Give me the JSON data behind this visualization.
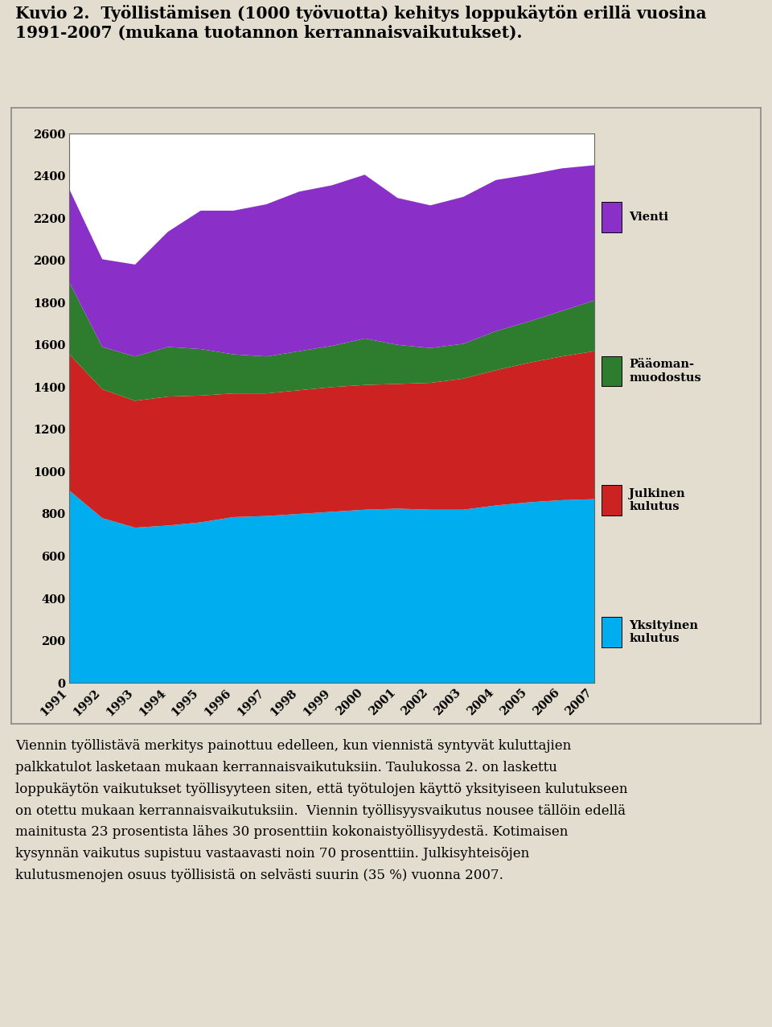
{
  "title_line1": "Kuvio 2.  Työllistämisen (1000 työvuotta) kehitys loppukäytön erillä vuosina",
  "title_line2": "1991-2007 (mukana tuotannon kerrannaisvaikutukset).",
  "years": [
    1991,
    1992,
    1993,
    1994,
    1995,
    1996,
    1997,
    1998,
    1999,
    2000,
    2001,
    2002,
    2003,
    2004,
    2005,
    2006,
    2007
  ],
  "yksityinen_kulutus": [
    910,
    780,
    735,
    745,
    760,
    785,
    790,
    800,
    810,
    820,
    825,
    820,
    820,
    840,
    855,
    865,
    870
  ],
  "julkinen_kulutus": [
    645,
    610,
    600,
    610,
    600,
    585,
    580,
    585,
    590,
    590,
    590,
    600,
    620,
    640,
    660,
    680,
    700
  ],
  "paaomanmuodostus": [
    340,
    200,
    210,
    235,
    220,
    185,
    175,
    185,
    195,
    220,
    185,
    165,
    165,
    185,
    195,
    215,
    240
  ],
  "vienti": [
    440,
    415,
    435,
    545,
    655,
    680,
    720,
    755,
    760,
    775,
    695,
    675,
    695,
    715,
    695,
    675,
    640
  ],
  "color_yksityinen": "#00AEEF",
  "color_julkinen": "#CC2222",
  "color_paaoma": "#2E7D2E",
  "color_vienti": "#8B2FC9",
  "ylim": [
    0,
    2600
  ],
  "yticks": [
    0,
    200,
    400,
    600,
    800,
    1000,
    1200,
    1400,
    1600,
    1800,
    2000,
    2200,
    2400,
    2600
  ],
  "background_outer": "#E3DDD0",
  "background_plot": "#FFFFFF",
  "body_text_line1": "Viennin työllistävä merkitys painottuu edelleen, kun viennistä syntyvät kuluttajien",
  "body_text_line2": "palkkatulot lasketaan mukaan kerrannaisvaikutuksiin. Taulukossa 2. on laskettu",
  "body_text_line3": "loppukäytön vaikutukset työllisyyteen siten, että työtulojen käyttö yksityiseen kulutukseen",
  "body_text_line4": "on otettu mukaan kerrannaisvaikutuksiin.  Viennin työllisyysvaikutus nousee tällöin edellä",
  "body_text_line5": "mainitusta 23 prosentista lähes 30 prosenttiin kokonaistyöllisyydestä. Kotimaisen",
  "body_text_line6": "kysynnän vaikutus supistuu vastaavasti noin 70 prosenttiin. Julkisyhteisöjen",
  "body_text_line7": "kulutusmenojen osuus työllisistä on selvästi suurin (35 %) vuonna 2007."
}
